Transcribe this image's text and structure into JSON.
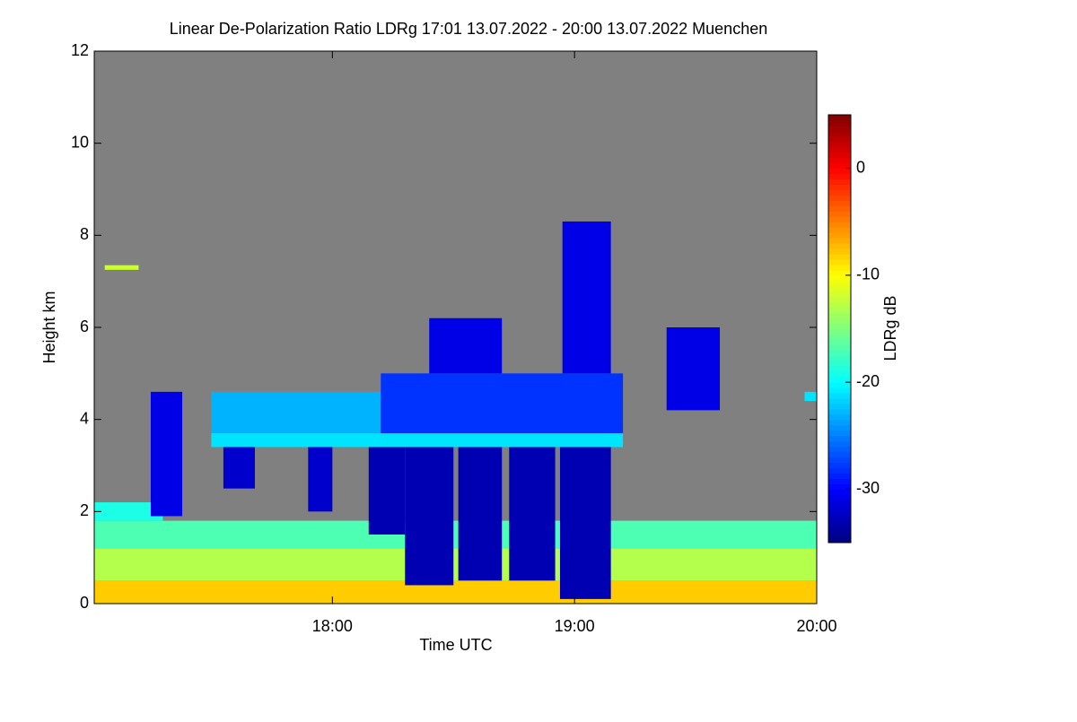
{
  "chart_data": {
    "type": "heatmap",
    "title": "Linear De-Polarization Ratio LDRg   17:01 13.07.2022 - 20:00 13.07.2022 Muenchen",
    "x_label": "Time UTC",
    "y_label": "Height km",
    "colorbar_label": "LDRg dB",
    "xlim": [
      17.0167,
      20.0
    ],
    "xticks": [
      {
        "value": 18,
        "label": "18:00"
      },
      {
        "value": 19,
        "label": "19:00"
      },
      {
        "value": 20,
        "label": "20:00"
      }
    ],
    "ylim": [
      0,
      12
    ],
    "yticks": [
      0,
      2,
      4,
      6,
      8,
      10,
      12
    ],
    "clim": [
      -35,
      5
    ],
    "cticks": [
      0,
      -10,
      -20,
      -30
    ],
    "colormap": "jet",
    "background": "#808080",
    "cells": [
      {
        "t": [
          17.0167,
          20.0
        ],
        "h": [
          0,
          0.5
        ],
        "value": -8
      },
      {
        "t": [
          17.0167,
          20.0
        ],
        "h": [
          0.5,
          1.2
        ],
        "value": -13
      },
      {
        "t": [
          17.0167,
          20.0
        ],
        "h": [
          1.2,
          1.8
        ],
        "value": -17
      },
      {
        "t": [
          17.0167,
          17.3
        ],
        "h": [
          1.8,
          2.2
        ],
        "value": -19
      },
      {
        "t": [
          18.15,
          18.3
        ],
        "h": [
          1.5,
          3.4
        ],
        "value": -33
      },
      {
        "t": [
          18.3,
          18.5
        ],
        "h": [
          0.4,
          3.4
        ],
        "value": -33
      },
      {
        "t": [
          18.52,
          18.7
        ],
        "h": [
          0.5,
          3.4
        ],
        "value": -33
      },
      {
        "t": [
          18.73,
          18.92
        ],
        "h": [
          0.5,
          3.4
        ],
        "value": -33
      },
      {
        "t": [
          18.94,
          19.15
        ],
        "h": [
          0.1,
          3.4
        ],
        "value": -33
      },
      {
        "t": [
          17.25,
          17.38
        ],
        "h": [
          1.9,
          4.6
        ],
        "value": -31
      },
      {
        "t": [
          17.55,
          17.68
        ],
        "h": [
          2.5,
          3.5
        ],
        "value": -32
      },
      {
        "t": [
          17.9,
          18.0
        ],
        "h": [
          2.0,
          3.5
        ],
        "value": -32
      },
      {
        "t": [
          17.5,
          18.2
        ],
        "h": [
          3.7,
          4.6
        ],
        "value": -23
      },
      {
        "t": [
          18.2,
          19.2
        ],
        "h": [
          3.7,
          5.0
        ],
        "value": -28
      },
      {
        "t": [
          18.4,
          18.7
        ],
        "h": [
          5.0,
          6.2
        ],
        "value": -31
      },
      {
        "t": [
          18.95,
          19.15
        ],
        "h": [
          5.0,
          8.3
        ],
        "value": -31
      },
      {
        "t": [
          19.38,
          19.6
        ],
        "h": [
          4.2,
          6.0
        ],
        "value": -31
      },
      {
        "t": [
          17.5,
          19.2
        ],
        "h": [
          3.4,
          3.7
        ],
        "value": -21
      },
      {
        "t": [
          17.06,
          17.2
        ],
        "h": [
          7.25,
          7.35
        ],
        "value": -12
      },
      {
        "t": [
          19.95,
          20.0
        ],
        "h": [
          4.4,
          4.6
        ],
        "value": -21
      }
    ]
  }
}
